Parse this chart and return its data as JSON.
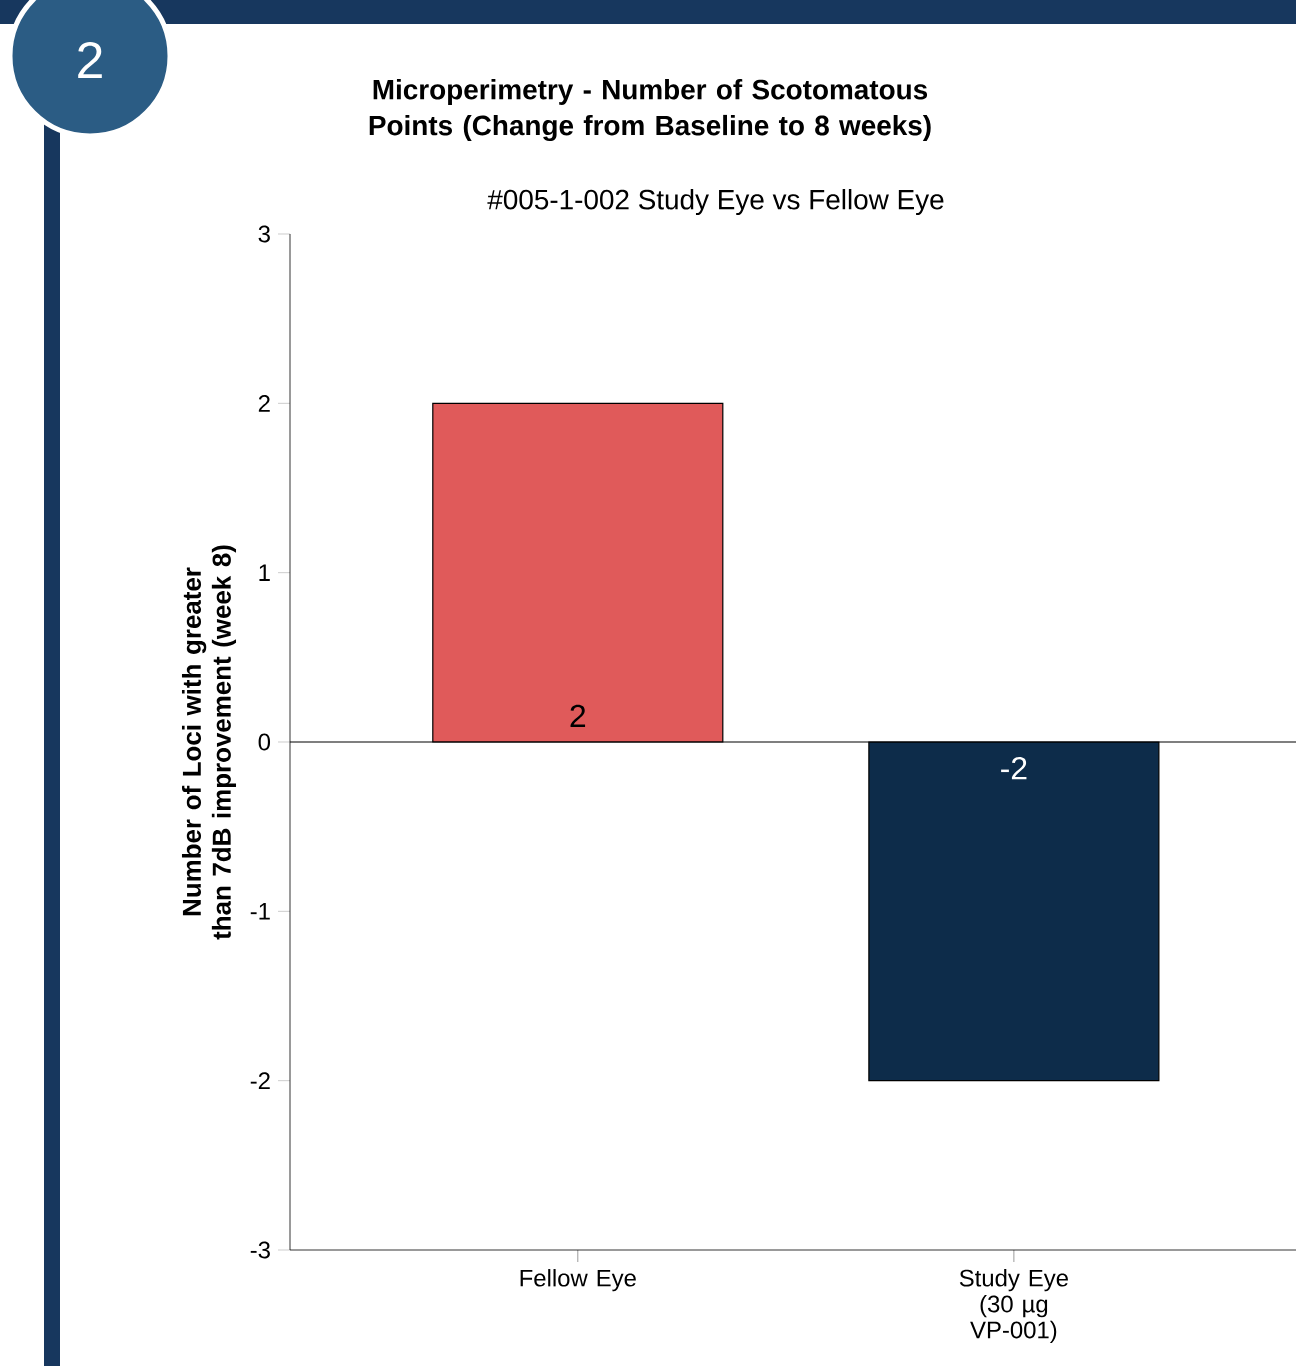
{
  "chart_data": {
    "type": "bar",
    "title": "Microperimetry - Number of Scotomatous Points (Change from Baseline to 8 weeks)",
    "subtitle": "#005-1-002 Study Eye vs Fellow Eye",
    "ylabel": "Number of Loci with greater than 7dB improvement (week 8)",
    "categories": [
      "Fellow Eye",
      "Study Eye (30 µg VP-001)"
    ],
    "values": [
      2,
      -2
    ],
    "colors": [
      "#e05a5a",
      "#0d2c4a"
    ],
    "ylim": [
      -3,
      3
    ],
    "yticks": [
      -3,
      -2,
      -1,
      0,
      1,
      2,
      3
    ],
    "data_labels": true,
    "ref_lines": [
      {
        "axis": "y",
        "value": 0
      }
    ],
    "annotations": [
      "2"
    ]
  }
}
